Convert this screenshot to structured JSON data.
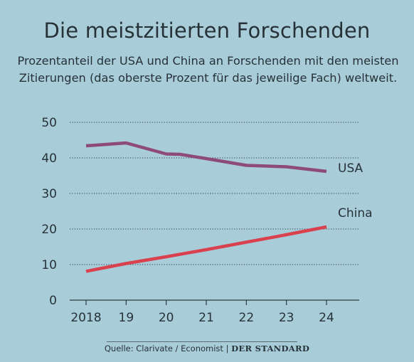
{
  "header": {
    "title": "Die meistzitierten Forschenden",
    "subtitle": "Prozentanteil der USA und China an Forschenden mit den meisten Zitierungen (das oberste Prozent für das jeweilige Fach) weltweit."
  },
  "footer": {
    "source": "Quelle: Clarivate / Economist |",
    "brand": "DER STANDARD"
  },
  "chart_data": {
    "type": "line",
    "x": [
      2018,
      2019,
      2020,
      2020.35,
      2021,
      2022,
      2023,
      2024
    ],
    "x_tick_values": [
      2018,
      2019,
      2020,
      2021,
      2022,
      2023,
      2024
    ],
    "x_tick_labels": [
      "2018",
      "19",
      "20",
      "21",
      "22",
      "23",
      "24"
    ],
    "y_ticks": [
      0,
      10,
      20,
      30,
      40,
      50
    ],
    "ylim": [
      0,
      50
    ],
    "grid": "horizontal dotted",
    "series": [
      {
        "name": "USA",
        "color": "#8e4a7b",
        "x": [
          2018,
          2019,
          2020,
          2020.35,
          2021,
          2022,
          2023,
          2024
        ],
        "values": [
          43.4,
          44.2,
          41.1,
          41.0,
          39.8,
          37.9,
          37.5,
          36.2
        ]
      },
      {
        "name": "China",
        "color": "#d9414f",
        "x": [
          2018,
          2019,
          2020,
          2021,
          2022,
          2023,
          2024
        ],
        "values": [
          8.1,
          10.3,
          12.2,
          14.2,
          16.3,
          18.4,
          20.6
        ]
      }
    ]
  }
}
